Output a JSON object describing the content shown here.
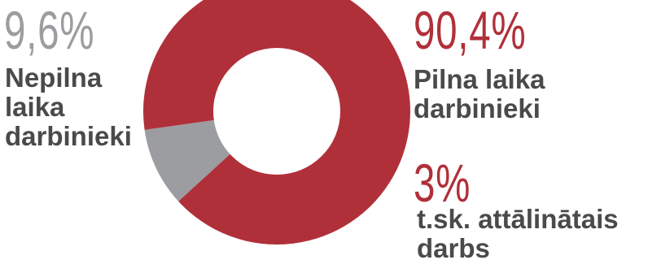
{
  "chart_data": {
    "type": "pie",
    "donut": true,
    "categories": [
      "Nepilna laika darbinieki",
      "Pilna laika darbinieki"
    ],
    "values": [
      9.6,
      90.4
    ],
    "value_labels": [
      "9,6%",
      "90,4%"
    ],
    "colors": [
      "#9b9da0",
      "#b0303a"
    ],
    "callout": {
      "value": 3,
      "value_label": "3%",
      "label": "t.sk. attālinātais darbs",
      "color": "#b0303a"
    },
    "title": "",
    "legend": "none"
  }
}
